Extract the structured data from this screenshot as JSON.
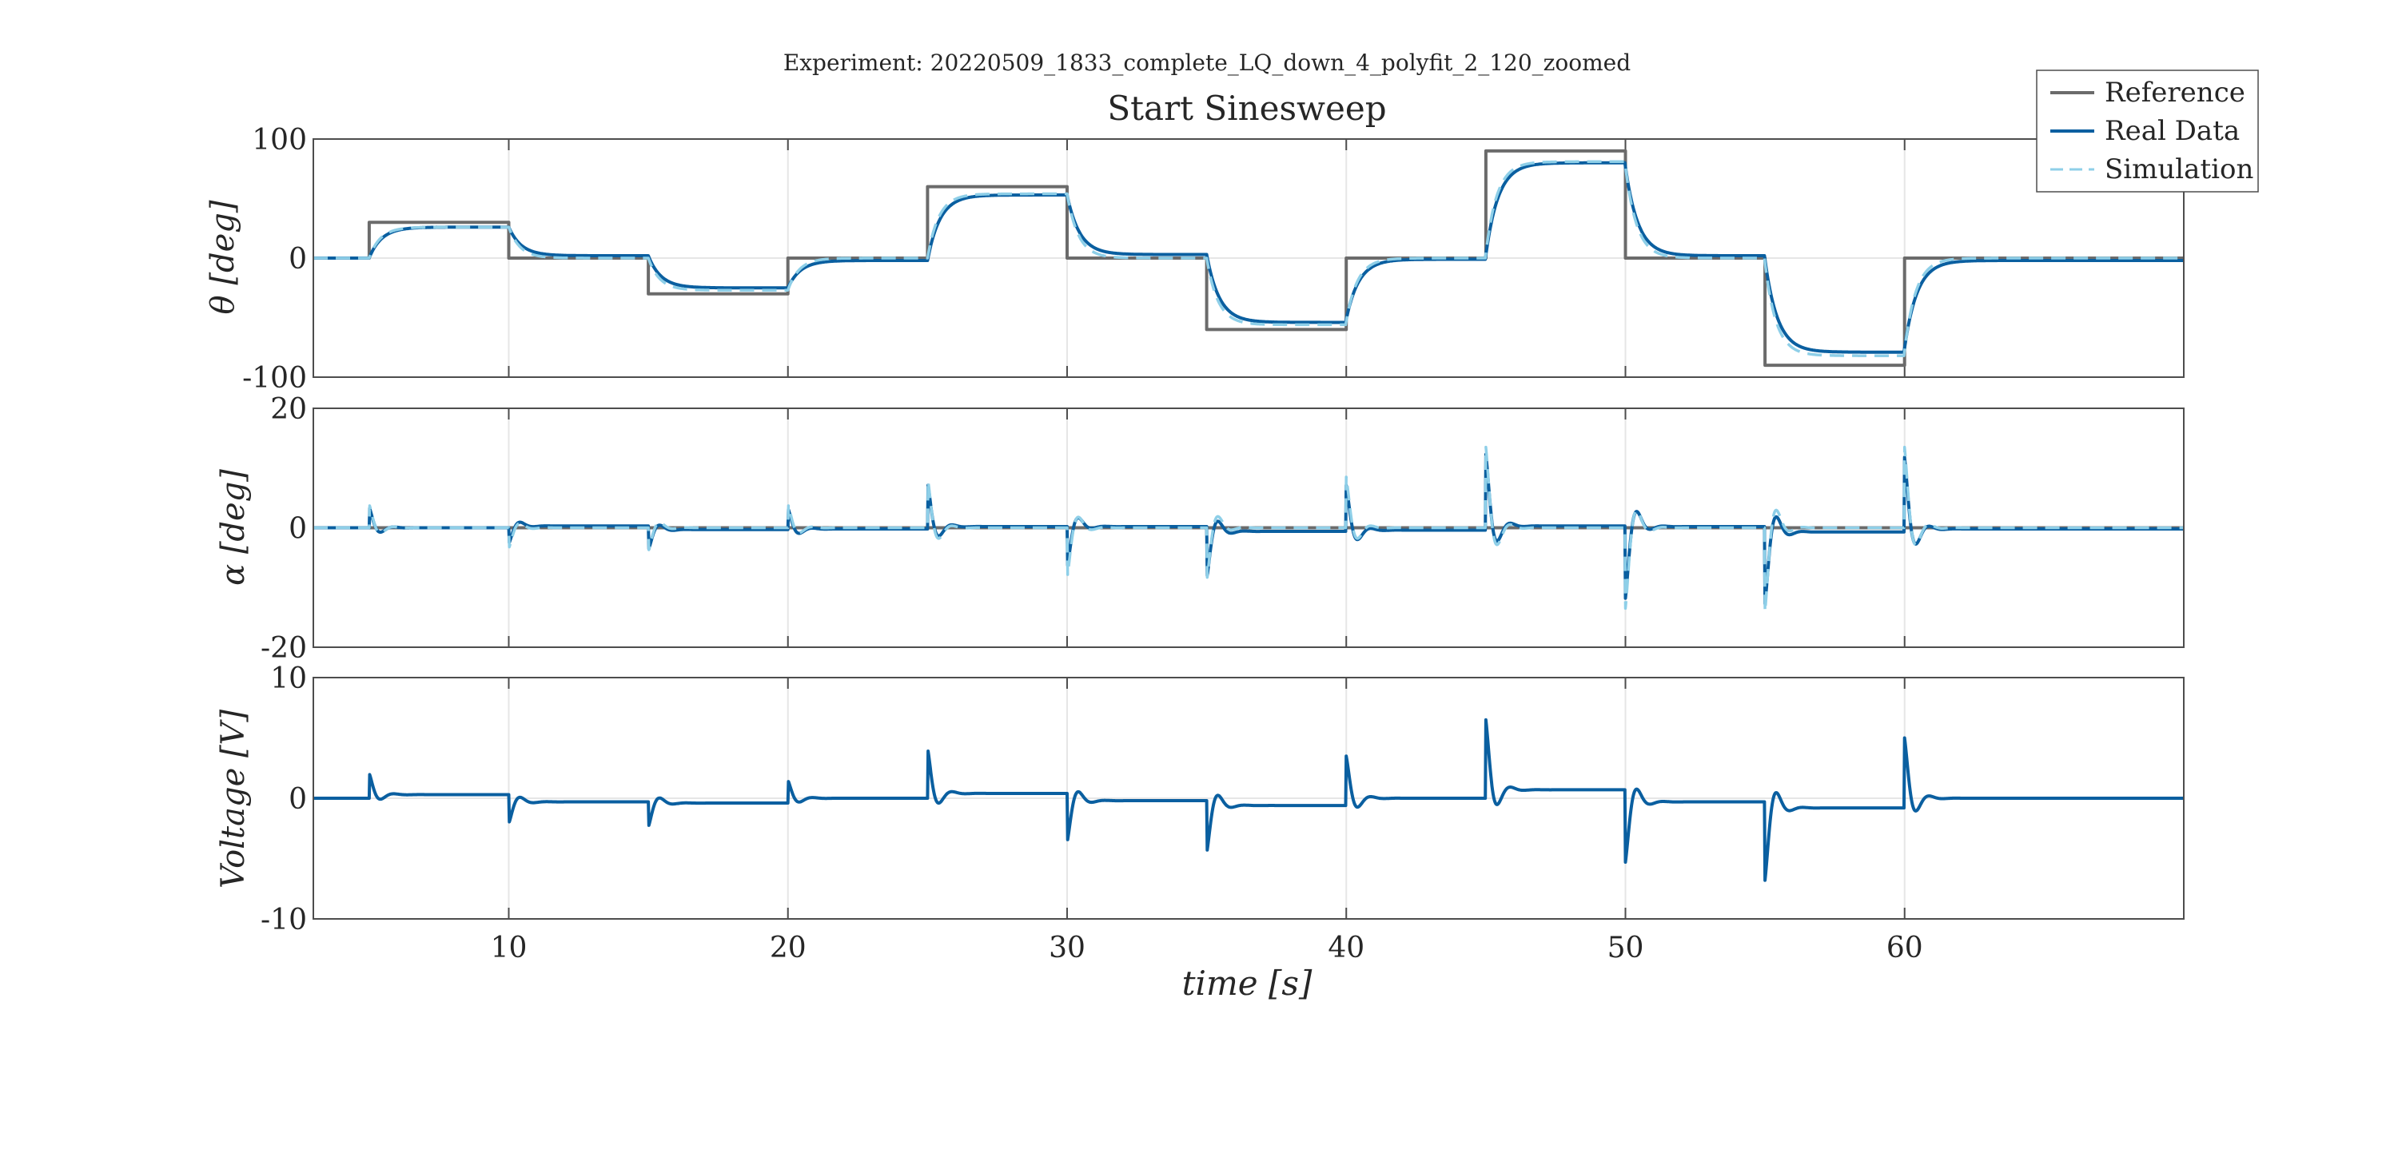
{
  "suptitle": "Experiment: 20220509_1833_complete_LQ_down_4_polyfit_2_120_zoomed",
  "colors": {
    "reference": "#6b6b6b",
    "real": "#0a5fa0",
    "simulation": "#8ecfe8",
    "grid": "#e6e6e6",
    "axes": "#4d4d4d"
  },
  "legend": {
    "placement": "top-right",
    "entries": [
      {
        "label": "Reference",
        "style": "solid",
        "color": "#6b6b6b"
      },
      {
        "label": "Real Data",
        "style": "solid",
        "color": "#0a5fa0"
      },
      {
        "label": "Simulation",
        "style": "dashed",
        "color": "#8ecfe8"
      }
    ]
  },
  "chart_data": [
    {
      "type": "line",
      "title": "Start Sinesweep",
      "ylabel": "θ [deg]",
      "xlim": [
        3,
        70
      ],
      "ylim": [
        -100,
        100
      ],
      "yticks": [
        -100,
        0,
        100
      ],
      "ytick_labels": [
        "-100",
        "0",
        "100"
      ],
      "grid": true,
      "series": [
        {
          "name": "Reference",
          "kind": "step",
          "steps": [
            [
              3,
              0
            ],
            [
              5,
              30
            ],
            [
              10,
              0
            ],
            [
              15,
              -30
            ],
            [
              20,
              0
            ],
            [
              25,
              60
            ],
            [
              30,
              0
            ],
            [
              35,
              -60
            ],
            [
              40,
              0
            ],
            [
              45,
              90
            ],
            [
              50,
              0
            ],
            [
              55,
              -90
            ],
            [
              60,
              0
            ],
            [
              70,
              0
            ]
          ]
        },
        {
          "name": "Real Data",
          "kind": "first_order",
          "tau": 0.45,
          "steps": [
            [
              3,
              0
            ],
            [
              5,
              26
            ],
            [
              10,
              2
            ],
            [
              15,
              -25
            ],
            [
              20,
              -2
            ],
            [
              25,
              53
            ],
            [
              30,
              3
            ],
            [
              35,
              -54
            ],
            [
              40,
              -1
            ],
            [
              45,
              80
            ],
            [
              50,
              2
            ],
            [
              55,
              -79
            ],
            [
              60,
              -2
            ],
            [
              70,
              -2
            ]
          ]
        },
        {
          "name": "Simulation",
          "kind": "first_order",
          "tau": 0.4,
          "steps": [
            [
              3,
              0
            ],
            [
              5,
              26
            ],
            [
              10,
              0
            ],
            [
              15,
              -27
            ],
            [
              20,
              0
            ],
            [
              25,
              54
            ],
            [
              30,
              0
            ],
            [
              35,
              -56
            ],
            [
              40,
              0
            ],
            [
              45,
              81
            ],
            [
              50,
              0
            ],
            [
              55,
              -82
            ],
            [
              60,
              0
            ],
            [
              70,
              0
            ]
          ]
        }
      ]
    },
    {
      "type": "line",
      "ylabel": "α [deg]",
      "xlim": [
        3,
        70
      ],
      "ylim": [
        -20,
        20
      ],
      "yticks": [
        -20,
        0,
        20
      ],
      "ytick_labels": [
        "-20",
        "0",
        "20"
      ],
      "grid": true,
      "series": [
        {
          "name": "Reference",
          "kind": "constant",
          "value": 0
        },
        {
          "name": "Real Data",
          "kind": "spikes",
          "events": [
            [
              5,
              3.5,
              0
            ],
            [
              10,
              -3,
              0.3
            ],
            [
              15,
              -3.5,
              -0.3
            ],
            [
              20,
              3.5,
              -0.2
            ],
            [
              25,
              7.5,
              0.2
            ],
            [
              30,
              -7,
              0.2
            ],
            [
              35,
              -8,
              -0.6
            ],
            [
              40,
              7.5,
              -0.4
            ],
            [
              45,
              12,
              0.3
            ],
            [
              50,
              -12,
              0.2
            ],
            [
              55,
              -12,
              -0.7
            ],
            [
              60,
              12,
              -0.2
            ]
          ]
        },
        {
          "name": "Simulation",
          "kind": "spikes",
          "events": [
            [
              5,
              4,
              0
            ],
            [
              10,
              -3.5,
              0
            ],
            [
              15,
              -4,
              0
            ],
            [
              20,
              4,
              0
            ],
            [
              25,
              8.5,
              0
            ],
            [
              30,
              -8.5,
              0
            ],
            [
              35,
              -9,
              0
            ],
            [
              40,
              8.5,
              0
            ],
            [
              45,
              13.5,
              0
            ],
            [
              50,
              -13.5,
              0
            ],
            [
              55,
              -14,
              0
            ],
            [
              60,
              13.5,
              0
            ]
          ]
        }
      ]
    },
    {
      "type": "line",
      "xlabel": "time [s]",
      "ylabel": "Voltage [V]",
      "xlim": [
        3,
        70
      ],
      "ylim": [
        -10,
        10
      ],
      "xticks": [
        10,
        20,
        30,
        40,
        50,
        60
      ],
      "xtick_labels": [
        "10",
        "20",
        "30",
        "40",
        "50",
        "60"
      ],
      "yticks": [
        -10,
        0,
        10
      ],
      "ytick_labels": [
        "-10",
        "0",
        "10"
      ],
      "grid": true,
      "series": [
        {
          "name": "Real Data",
          "kind": "spikes",
          "events": [
            [
              5,
              1.8,
              0.3
            ],
            [
              10,
              -1.8,
              -0.3
            ],
            [
              15,
              -2,
              -0.4
            ],
            [
              20,
              1.5,
              0
            ],
            [
              25,
              3.8,
              0.4
            ],
            [
              30,
              -3.5,
              -0.2
            ],
            [
              35,
              -4,
              -0.6
            ],
            [
              40,
              3.5,
              0
            ],
            [
              45,
              5.8,
              0.7
            ],
            [
              50,
              -5,
              -0.3
            ],
            [
              55,
              -6,
              -0.8
            ],
            [
              60,
              5,
              0
            ]
          ]
        }
      ]
    }
  ]
}
